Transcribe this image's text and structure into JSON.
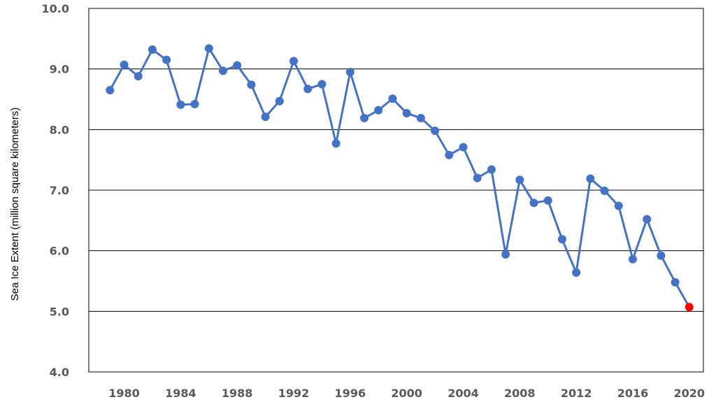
{
  "chart_data": {
    "type": "line",
    "title": "",
    "xlabel": "",
    "ylabel": "Sea Ice Extent  (million square kilometers)",
    "xlim": [
      1977.5,
      2021
    ],
    "ylim": [
      4.0,
      10.0
    ],
    "grid": "horizontal",
    "x_ticks": [
      1980,
      1984,
      1988,
      1992,
      1996,
      2000,
      2004,
      2008,
      2012,
      2016,
      2020
    ],
    "x_tick_labels": [
      "1980",
      "1984",
      "1988",
      "1992",
      "1996",
      "2000",
      "2004",
      "2008",
      "2012",
      "2016",
      "2020"
    ],
    "y_ticks": [
      4.0,
      5.0,
      6.0,
      7.0,
      8.0,
      9.0,
      10.0
    ],
    "y_tick_labels": [
      "4.0",
      "5.0",
      "6.0",
      "7.0",
      "8.0",
      "9.0",
      "10.0"
    ],
    "line_color": "#4472C4",
    "highlight_color": "#FF0000",
    "highlight_x": 2020,
    "x": [
      1979,
      1980,
      1981,
      1982,
      1983,
      1984,
      1985,
      1986,
      1987,
      1988,
      1989,
      1990,
      1991,
      1992,
      1993,
      1994,
      1995,
      1996,
      1997,
      1998,
      1999,
      2000,
      2001,
      2002,
      2003,
      2004,
      2005,
      2006,
      2007,
      2008,
      2009,
      2010,
      2011,
      2012,
      2013,
      2014,
      2015,
      2016,
      2017,
      2018,
      2019,
      2020
    ],
    "series": [
      {
        "values": [
          8.65,
          9.07,
          8.88,
          9.32,
          9.15,
          8.41,
          8.42,
          9.34,
          8.97,
          9.06,
          8.74,
          8.21,
          8.47,
          9.13,
          8.67,
          8.75,
          7.77,
          8.95,
          8.19,
          8.32,
          8.51,
          8.27,
          8.19,
          7.98,
          7.58,
          7.71,
          7.2,
          7.34,
          5.94,
          7.17,
          6.79,
          6.83,
          6.19,
          5.64,
          7.19,
          6.99,
          6.74,
          5.86,
          6.52,
          5.92,
          5.48,
          5.07
        ]
      }
    ]
  }
}
